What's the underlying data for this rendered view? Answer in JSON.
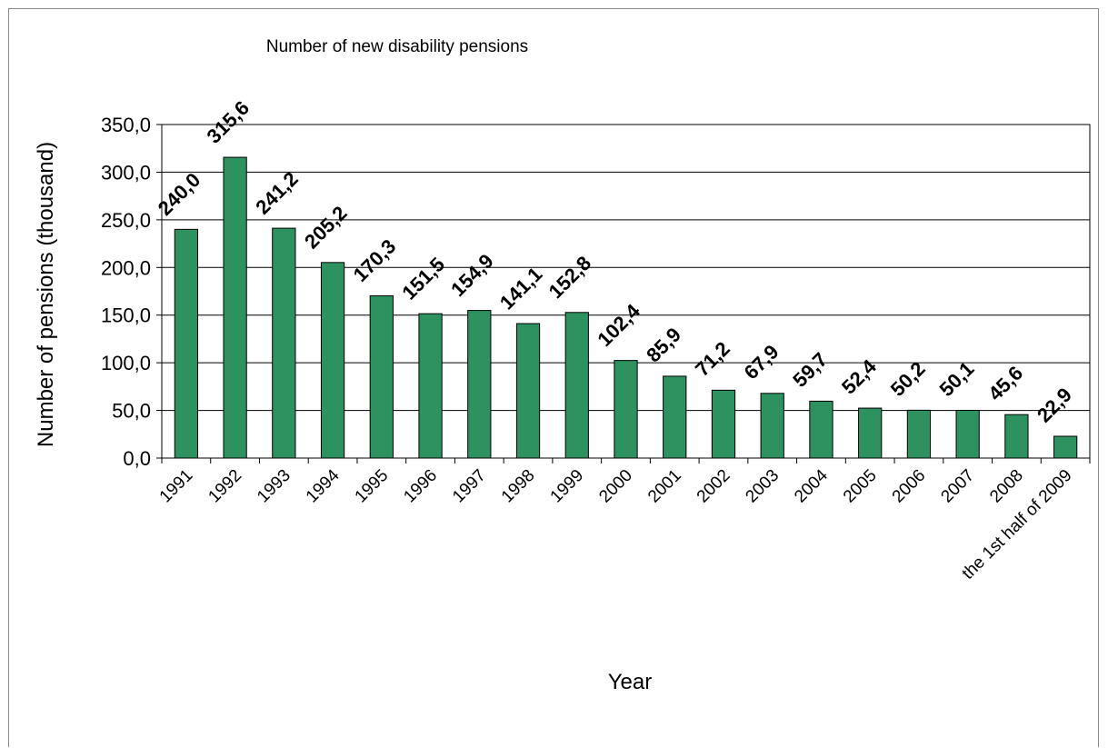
{
  "chart_data": {
    "type": "bar",
    "title": "Number of new disability pensions",
    "xlabel": "Year",
    "ylabel": "Number of pensions (thousand)",
    "ylim": [
      0,
      350
    ],
    "ytick_step": 50,
    "ytick_labels": [
      "0,0",
      "50,0",
      "100,0",
      "150,0",
      "200,0",
      "250,0",
      "300,0",
      "350,0"
    ],
    "grid": true,
    "legend": "none",
    "bar_color": "#2e9160",
    "categories": [
      "1991",
      "1992",
      "1993",
      "1994",
      "1995",
      "1996",
      "1997",
      "1998",
      "1999",
      "2000",
      "2001",
      "2002",
      "2003",
      "2004",
      "2005",
      "2006",
      "2007",
      "2008",
      "the 1st half of 2009"
    ],
    "values": [
      240.0,
      315.6,
      241.2,
      205.2,
      170.3,
      151.5,
      154.9,
      141.1,
      152.8,
      102.4,
      85.9,
      71.2,
      67.9,
      59.7,
      52.4,
      50.2,
      50.1,
      45.6,
      22.9
    ],
    "data_labels": [
      "240,0",
      "315,6",
      "241,2",
      "205,2",
      "170,3",
      "151,5",
      "154,9",
      "141,1",
      "152,8",
      "102,4",
      "85,9",
      "71,2",
      "67,9",
      "59,7",
      "52,4",
      "50,2",
      "50,1",
      "45,6",
      "22,9"
    ]
  }
}
